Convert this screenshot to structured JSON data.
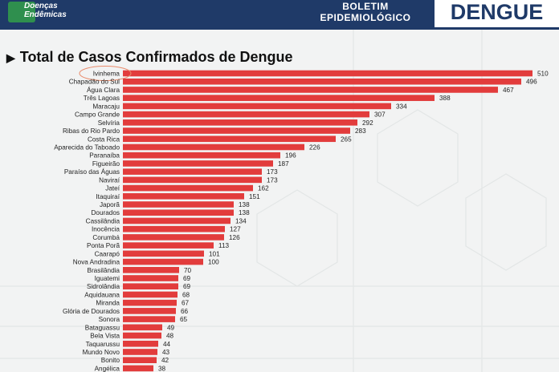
{
  "header": {
    "logo_text": "Doenças Endêmicas",
    "bulletin_line1": "BOLETIM",
    "bulletin_line2": "EPIDEMIOLÓGICO",
    "disease": "DENGUE"
  },
  "colors": {
    "header_bg": "#1f3a68",
    "bar": "#e23c3c",
    "highlight_circle": "#e98a6a"
  },
  "chart_data": {
    "type": "bar",
    "orientation": "horizontal",
    "title": "Total de Casos Confirmados de Dengue",
    "highlighted_category": "Ivinhema",
    "categories": [
      "Ivinhema",
      "Chapadão do Sul",
      "Água Clara",
      "Três Lagoas",
      "Maracaju",
      "Campo Grande",
      "Selvíria",
      "Ribas do Rio Pardo",
      "Costa Rica",
      "Aparecida do Taboado",
      "Paranaíba",
      "Figueirão",
      "Paraíso das Águas",
      "Naviraí",
      "Jateí",
      "Itaquiraí",
      "Japorã",
      "Dourados",
      "Cassilândia",
      "Inocência",
      "Corumbá",
      "Ponta Porã",
      "Caarapó",
      "Nova Andradina",
      "Brasilândia",
      "Iguatemi",
      "Sidrolândia",
      "Aquidauana",
      "Miranda",
      "Glória de Dourados",
      "Sonora",
      "Bataguassu",
      "Bela Vista",
      "Taquarussu",
      "Mundo Novo",
      "Bonito",
      "Angélica"
    ],
    "values": [
      510,
      496,
      467,
      388,
      334,
      307,
      292,
      283,
      265,
      226,
      196,
      187,
      173,
      173,
      162,
      151,
      138,
      138,
      134,
      127,
      126,
      113,
      101,
      100,
      70,
      69,
      69,
      68,
      67,
      66,
      65,
      49,
      48,
      44,
      43,
      42,
      38
    ],
    "xlim": [
      0,
      510
    ]
  }
}
